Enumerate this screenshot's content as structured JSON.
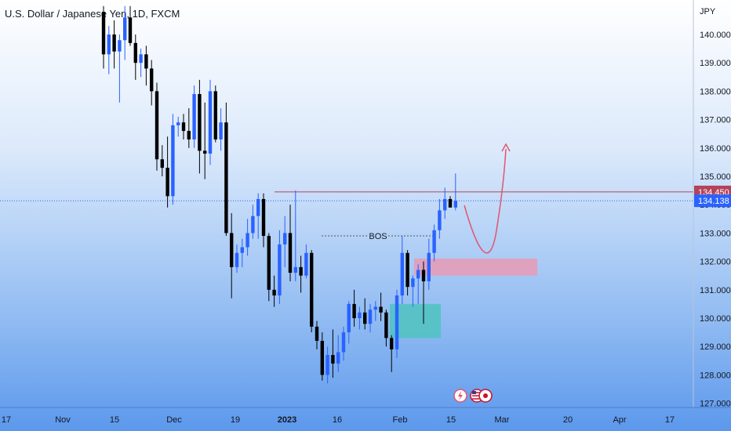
{
  "header": {
    "symbol": "U.S. Dollar / Japanese Yen",
    "interval": "1D",
    "exchange": "FXCM",
    "sep": ", "
  },
  "currency": "JPY",
  "colors": {
    "up": "#2962ff",
    "down": "#000000",
    "resistance": "#b2435a",
    "current": "#2962ff",
    "supply_zone": "#e89bb4",
    "demand_zone": "#4fc3c0",
    "projection": "#e0566f"
  },
  "annotations": {
    "bos_label": "BOS"
  },
  "icons": [
    "lightning-icon",
    "us-flag-icon",
    "jp-flag-icon"
  ],
  "chart_data": {
    "type": "candlestick",
    "title": "U.S. Dollar / Japanese Yen, 1D, FXCM",
    "ylim": [
      127.0,
      141.0
    ],
    "y_ticks": [
      "140.000",
      "139.000",
      "138.000",
      "137.000",
      "136.000",
      "135.000",
      "134.000",
      "133.000",
      "132.000",
      "131.000",
      "130.000",
      "129.000",
      "128.000",
      "127.000"
    ],
    "x_ticks": [
      "17",
      "Nov",
      "15",
      "Dec",
      "19",
      "2023",
      "16",
      "Feb",
      "15",
      "Mar",
      "20",
      "Apr",
      "17"
    ],
    "price_labels": {
      "resistance": "134.450",
      "current": "134.138"
    },
    "levels": {
      "resistance": 134.45,
      "current": 134.138,
      "bos": 132.9
    },
    "zones": [
      {
        "name": "supply",
        "top": 132.1,
        "bottom": 131.5
      },
      {
        "name": "demand",
        "top": 130.5,
        "bottom": 129.3
      }
    ],
    "candles": [
      [
        140.8,
        141.0,
        138.8,
        139.3
      ],
      [
        139.3,
        140.3,
        138.6,
        140.0
      ],
      [
        140.0,
        140.5,
        138.8,
        139.4
      ],
      [
        139.4,
        140.0,
        137.6,
        139.8
      ],
      [
        139.8,
        141.0,
        139.1,
        140.6
      ],
      [
        140.6,
        141.0,
        139.6,
        139.7
      ],
      [
        139.7,
        140.0,
        138.4,
        139.0
      ],
      [
        139.0,
        139.5,
        138.5,
        139.3
      ],
      [
        139.3,
        139.6,
        138.2,
        138.8
      ],
      [
        138.8,
        139.1,
        137.5,
        138.0
      ],
      [
        138.0,
        138.3,
        135.2,
        135.6
      ],
      [
        135.6,
        136.1,
        135.0,
        135.3
      ],
      [
        135.3,
        136.4,
        133.9,
        134.3
      ],
      [
        134.3,
        137.2,
        134.0,
        136.8
      ],
      [
        136.8,
        137.1,
        136.4,
        136.9
      ],
      [
        136.9,
        137.2,
        136.3,
        136.6
      ],
      [
        136.6,
        137.4,
        136.0,
        136.3
      ],
      [
        136.3,
        138.2,
        136.0,
        137.9
      ],
      [
        137.9,
        138.4,
        135.1,
        135.9
      ],
      [
        135.9,
        137.6,
        134.9,
        135.8
      ],
      [
        135.8,
        138.4,
        135.4,
        138.0
      ],
      [
        138.0,
        138.2,
        136.2,
        136.3
      ],
      [
        136.3,
        137.4,
        135.9,
        136.9
      ],
      [
        136.9,
        137.6,
        132.9,
        133.0
      ],
      [
        133.0,
        133.7,
        130.7,
        131.8
      ],
      [
        131.8,
        132.6,
        131.6,
        132.3
      ],
      [
        132.3,
        132.8,
        131.8,
        132.5
      ],
      [
        132.5,
        133.5,
        132.2,
        133.0
      ],
      [
        133.0,
        134.0,
        132.8,
        133.6
      ],
      [
        133.6,
        134.4,
        132.8,
        134.2
      ],
      [
        134.2,
        134.4,
        132.5,
        132.9
      ],
      [
        132.9,
        133.0,
        130.6,
        131.0
      ],
      [
        131.0,
        131.5,
        130.4,
        130.8
      ],
      [
        130.8,
        133.1,
        130.5,
        132.6
      ],
      [
        132.6,
        133.6,
        131.8,
        133.0
      ],
      [
        133.0,
        134.0,
        131.3,
        131.6
      ],
      [
        131.6,
        134.5,
        131.3,
        131.8
      ],
      [
        131.8,
        132.2,
        130.9,
        131.5
      ],
      [
        131.5,
        132.6,
        131.4,
        132.3
      ],
      [
        132.3,
        132.4,
        129.5,
        129.7
      ],
      [
        129.7,
        129.9,
        128.9,
        129.2
      ],
      [
        129.2,
        129.5,
        127.8,
        128.0
      ],
      [
        128.0,
        129.0,
        127.7,
        128.7
      ],
      [
        128.7,
        129.6,
        127.9,
        128.4
      ],
      [
        128.4,
        129.4,
        128.1,
        128.8
      ],
      [
        128.8,
        129.7,
        128.5,
        129.5
      ],
      [
        129.5,
        130.6,
        129.1,
        130.5
      ],
      [
        130.5,
        131.0,
        129.7,
        130.0
      ],
      [
        130.0,
        130.4,
        129.6,
        130.2
      ],
      [
        130.2,
        130.7,
        129.6,
        129.8
      ],
      [
        129.8,
        130.5,
        129.5,
        130.3
      ],
      [
        130.3,
        130.6,
        129.9,
        130.4
      ],
      [
        130.4,
        130.9,
        129.9,
        130.2
      ],
      [
        130.2,
        130.3,
        129.0,
        129.3
      ],
      [
        129.3,
        129.4,
        128.1,
        128.9
      ],
      [
        128.9,
        131.0,
        128.6,
        130.8
      ],
      [
        130.8,
        132.9,
        130.5,
        132.3
      ],
      [
        132.3,
        132.4,
        130.8,
        131.1
      ],
      [
        131.1,
        131.5,
        130.4,
        131.4
      ],
      [
        131.4,
        131.9,
        130.5,
        131.7
      ],
      [
        131.7,
        132.0,
        129.8,
        131.3
      ],
      [
        131.3,
        132.8,
        131.0,
        132.3
      ],
      [
        132.3,
        133.3,
        132.0,
        133.1
      ],
      [
        133.1,
        134.2,
        132.8,
        133.8
      ],
      [
        133.8,
        134.6,
        133.5,
        134.2
      ],
      [
        134.2,
        134.3,
        133.9,
        133.9
      ],
      [
        133.9,
        135.1,
        133.8,
        134.138
      ]
    ]
  }
}
